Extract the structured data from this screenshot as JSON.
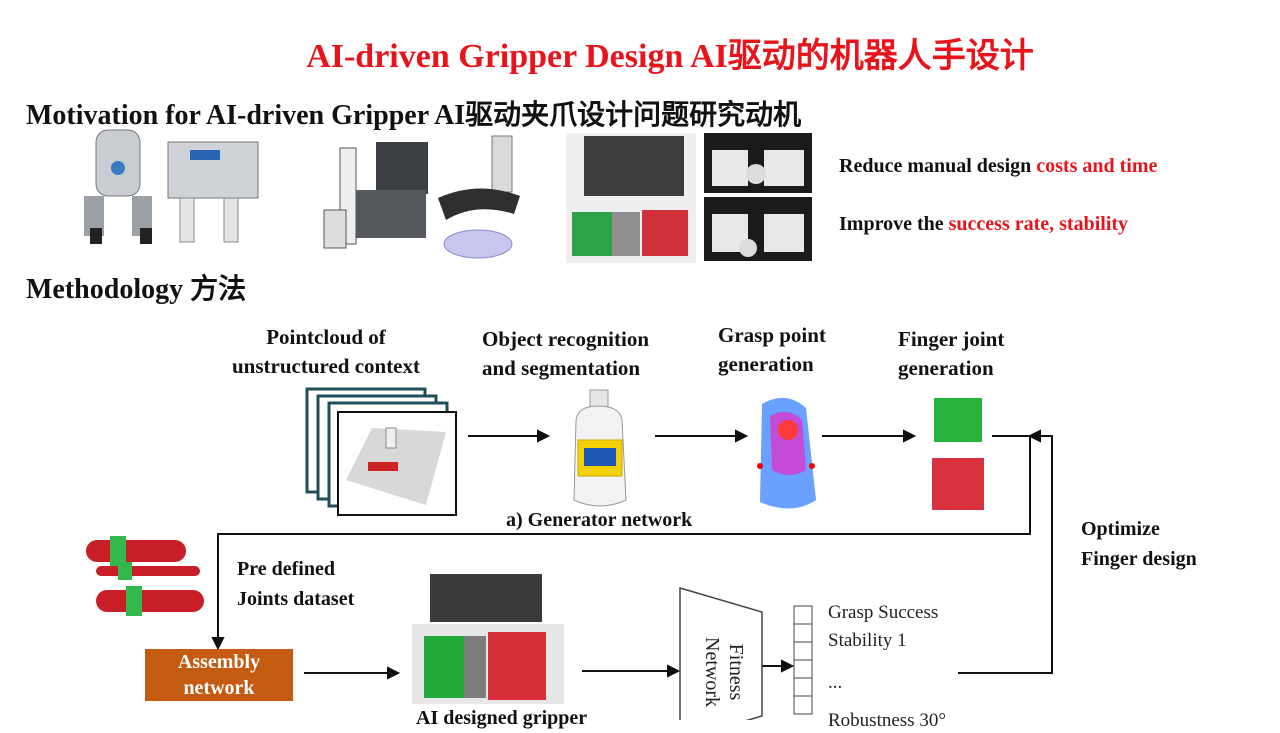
{
  "title": "AI-driven Gripper Design   AI驱动的机器人手设计",
  "motivation": {
    "heading": "Motivation for AI-driven Gripper   AI驱动夹爪设计问题研究动机",
    "bullet1": {
      "prefix": "Reduce manual design ",
      "highlight": "costs and time"
    },
    "bullet2": {
      "prefix": "Improve the ",
      "highlight": "success rate, stability"
    }
  },
  "methodology": {
    "heading": "Methodology 方法",
    "steps": {
      "pointcloud": [
        "Pointcloud of",
        "unstructured context"
      ],
      "recognition": [
        "Object recognition",
        "and segmentation"
      ],
      "grasp": [
        "Grasp point",
        "generation"
      ],
      "finger": [
        "Finger joint",
        "generation"
      ]
    },
    "generator_label": "a) Generator network",
    "optimize": [
      "Optimize",
      "Finger design"
    ],
    "joints": [
      "Pre defined",
      "Joints dataset"
    ],
    "assembly": [
      "Assembly",
      "network"
    ],
    "ai_label": "AI designed gripper",
    "fitness": [
      "Fitness",
      "Network"
    ],
    "outputs": [
      "Grasp Success",
      "Stability 1",
      "...",
      "Robustness 30°"
    ]
  },
  "colors": {
    "title": "#e8141b",
    "assembly_bg": "#c55a11",
    "frame": "#1f4e5a"
  }
}
